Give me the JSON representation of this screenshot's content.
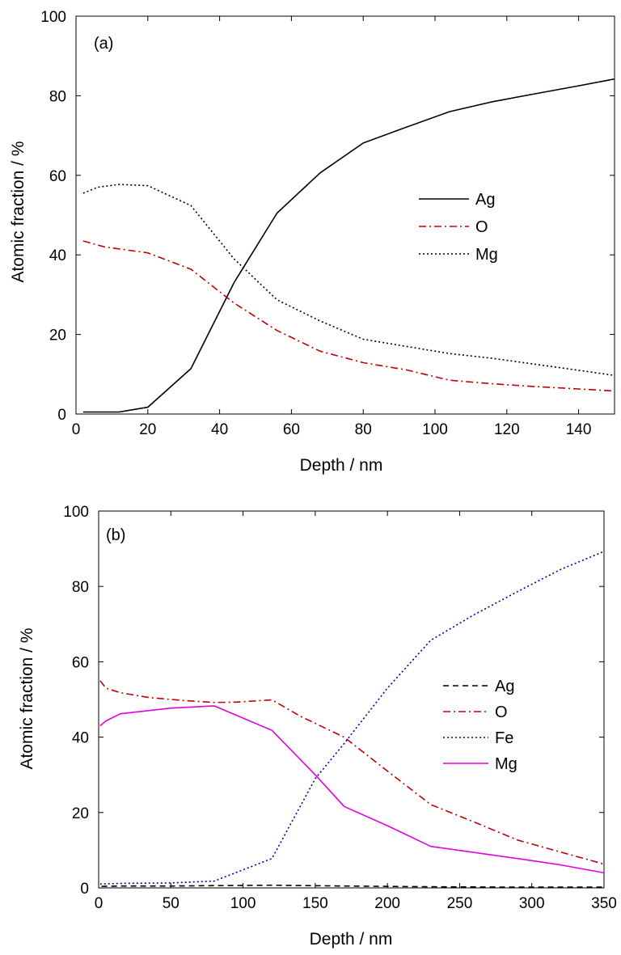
{
  "chart_data": [
    {
      "type": "line",
      "panel_label": "(a)",
      "xlabel": "Depth / nm",
      "ylabel": "Atomic fraction / %",
      "xlim": [
        0,
        150
      ],
      "ylim": [
        0,
        100
      ],
      "xticks": [
        0,
        20,
        40,
        60,
        80,
        100,
        120,
        140
      ],
      "yticks": [
        0,
        20,
        40,
        60,
        80,
        100
      ],
      "grid": false,
      "legend_position": "center-right",
      "series": [
        {
          "name": "Ag",
          "color": "#000000",
          "dash": "solid",
          "x": [
            2,
            12,
            20,
            32,
            44,
            56,
            68,
            80,
            92,
            104,
            116,
            128,
            140,
            150
          ],
          "y": [
            0.5,
            0.5,
            1.7,
            11.4,
            33,
            50.5,
            60.6,
            68.1,
            72.1,
            76,
            78.5,
            80.5,
            82.5,
            84.2
          ]
        },
        {
          "name": "O",
          "color": "#c00000",
          "dash": "dashdot",
          "x": [
            2,
            8,
            20,
            32,
            44,
            56,
            68,
            80,
            92,
            104,
            116,
            128,
            140,
            150
          ],
          "y": [
            43.5,
            42,
            40.5,
            36.4,
            27.9,
            21,
            15.8,
            12.9,
            11.1,
            8.5,
            7.6,
            6.9,
            6.3,
            5.8
          ]
        },
        {
          "name": "Mg",
          "color": "#000000",
          "dash": "dotted",
          "x": [
            2,
            6,
            12,
            20,
            32,
            44,
            56,
            68,
            80,
            92,
            104,
            116,
            128,
            140,
            150
          ],
          "y": [
            55.5,
            57,
            57.7,
            57.4,
            52.4,
            39,
            28.7,
            23.4,
            18.8,
            17,
            15.2,
            14,
            12.5,
            11,
            9.7
          ]
        }
      ]
    },
    {
      "type": "line",
      "panel_label": "(b)",
      "xlabel": "Depth / nm",
      "ylabel": "Atomic fraction / %",
      "xlim": [
        0,
        350
      ],
      "ylim": [
        0,
        100
      ],
      "xticks": [
        0,
        50,
        100,
        150,
        200,
        250,
        300,
        350
      ],
      "yticks": [
        0,
        20,
        40,
        60,
        80,
        100
      ],
      "grid": false,
      "legend_position": "center-right",
      "series": [
        {
          "name": "Ag",
          "color": "#000000",
          "dash": "dashed",
          "x": [
            2,
            15,
            50,
            80,
            120,
            170,
            230,
            290,
            350
          ],
          "y": [
            0.4,
            0.5,
            0.5,
            0.6,
            0.7,
            0.5,
            0.3,
            0.2,
            0.2
          ]
        },
        {
          "name": "O",
          "color": "#c00000",
          "dash": "dashdot",
          "x": [
            1,
            5,
            15,
            35,
            60,
            80,
            95,
            120,
            140,
            170,
            200,
            230,
            260,
            290,
            320,
            350
          ],
          "y": [
            55,
            53,
            51.8,
            50.5,
            49.7,
            49.2,
            49.3,
            49.9,
            45.5,
            40,
            31,
            22.1,
            17.5,
            12.7,
            9.5,
            6.3
          ]
        },
        {
          "name": "Fe",
          "color": "#00009e",
          "dash": "dotted",
          "x": [
            1,
            15,
            50,
            80,
            120,
            150,
            170,
            200,
            230,
            260,
            290,
            320,
            350
          ],
          "y": [
            1,
            1.2,
            1.3,
            1.8,
            7.8,
            29,
            38.3,
            53,
            65.7,
            72.5,
            78.6,
            84.5,
            89.3
          ]
        },
        {
          "name": "Mg",
          "color": "#e000e0",
          "dash": "solid",
          "x": [
            1,
            5,
            15,
            50,
            80,
            120,
            150,
            170,
            200,
            230,
            260,
            290,
            320,
            350
          ],
          "y": [
            43,
            44.3,
            46.2,
            47.7,
            48.3,
            41.8,
            30,
            21.6,
            16.5,
            11,
            9.4,
            7.8,
            6.1,
            4
          ]
        }
      ]
    }
  ]
}
